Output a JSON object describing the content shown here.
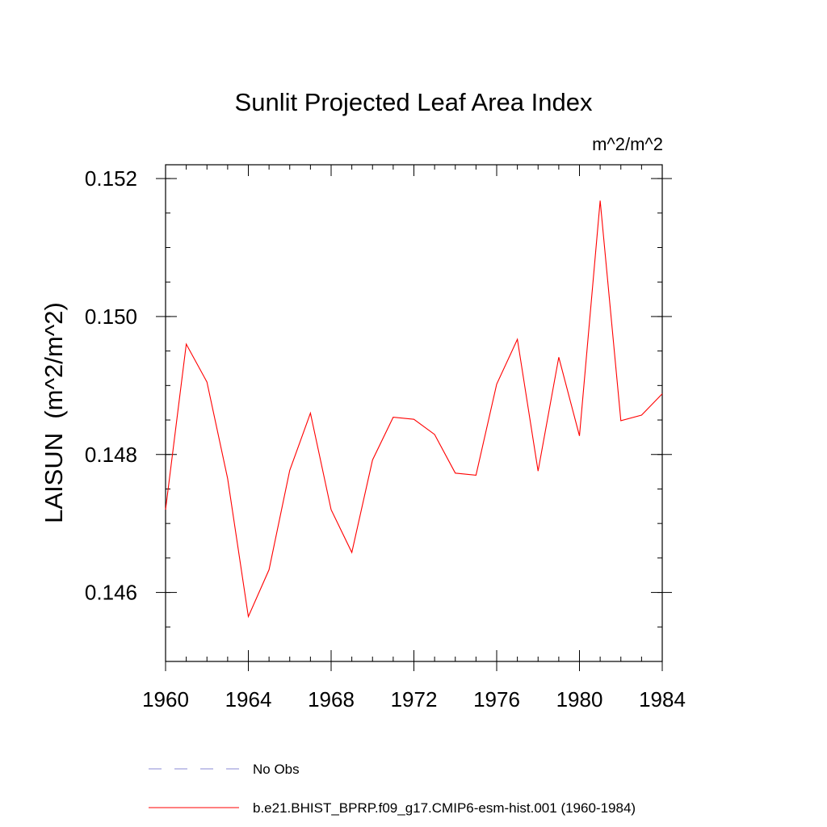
{
  "chart_data": {
    "type": "line",
    "title": "Sunlit Projected Leaf Area Index",
    "units_label": "m^2/m^2",
    "xlabel": "",
    "ylabel": "LAISUN  (m^2/m^2)",
    "xlim": [
      1960,
      1984
    ],
    "ylim": [
      0.145,
      0.1522
    ],
    "x_ticks": [
      1960,
      1964,
      1968,
      1972,
      1976,
      1980,
      1984
    ],
    "x_tick_labels": [
      "1960",
      "1964",
      "1968",
      "1972",
      "1976",
      "1980",
      "1984"
    ],
    "y_ticks": [
      0.146,
      0.148,
      0.15,
      0.152
    ],
    "y_tick_labels": [
      "0.146",
      "0.148",
      "0.150",
      "0.152"
    ],
    "y_minor_step": 0.0005,
    "x_minor_step": 1,
    "grid": false,
    "legend_position": "bottom-left",
    "series": [
      {
        "name": "b.e21.BHIST_BPRP.f09_g17.CMIP6-esm-hist.001 (1960-1984)",
        "color": "#ff0000",
        "style": "solid",
        "x": [
          1960,
          1961,
          1962,
          1963,
          1964,
          1965,
          1966,
          1967,
          1968,
          1969,
          1970,
          1971,
          1972,
          1973,
          1974,
          1975,
          1976,
          1977,
          1978,
          1979,
          1980,
          1981,
          1982,
          1983,
          1984
        ],
        "values": [
          0.1472,
          0.1496,
          0.14905,
          0.14765,
          0.14565,
          0.14633,
          0.14777,
          0.1486,
          0.1472,
          0.14658,
          0.14792,
          0.14854,
          0.14851,
          0.14829,
          0.14773,
          0.1477,
          0.14902,
          0.14967,
          0.14776,
          0.14941,
          0.14827,
          0.15168,
          0.14849,
          0.14857,
          0.14888
        ]
      }
    ],
    "legend": [
      {
        "label": "No Obs",
        "color": "#8a8ad6",
        "style": "dashed"
      },
      {
        "label": "b.e21.BHIST_BPRP.f09_g17.CMIP6-esm-hist.001 (1960-1984)",
        "color": "#ff0000",
        "style": "solid"
      }
    ]
  }
}
